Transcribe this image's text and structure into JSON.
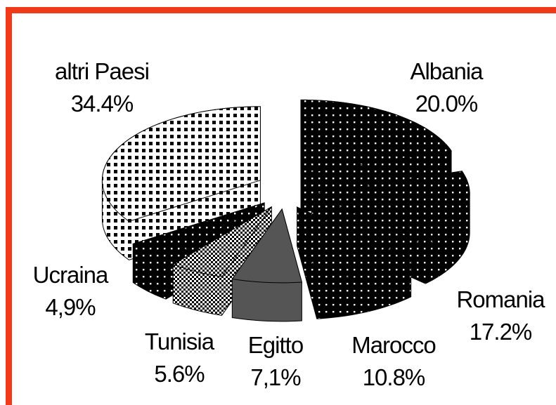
{
  "chart_data": {
    "type": "pie",
    "categories": [
      "Albania",
      "Romania",
      "Marocco",
      "Egitto",
      "Tunisia",
      "Ucraina",
      "altri Paesi"
    ],
    "values": [
      20.0,
      17.2,
      10.8,
      7.1,
      5.6,
      4.9,
      34.4
    ],
    "value_labels": [
      "20.0%",
      "17.2%",
      "10.8%",
      "7,1%",
      "5.6%",
      "4,9%",
      "34.4%"
    ],
    "colors": [
      "#000000",
      "#000000",
      "#000000",
      "#555555",
      "#888888",
      "#000000",
      "#ffffff"
    ]
  }
}
